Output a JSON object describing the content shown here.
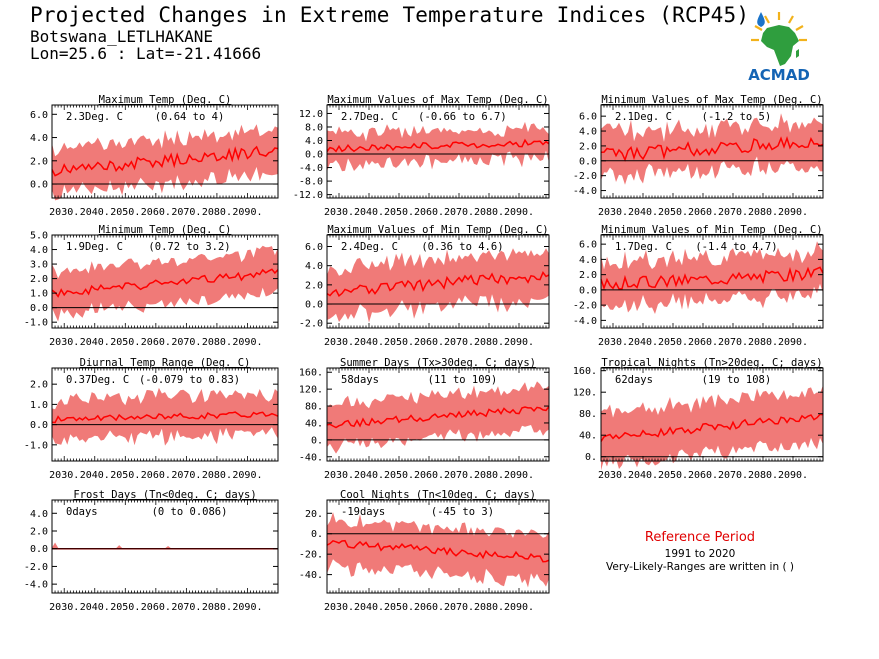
{
  "header": {
    "title": "Projected Changes in Extreme Temperature Indices (RCP45)",
    "station": "Botswana_LETLHAKANE",
    "coords": "Lon=25.6 : Lat=-21.41666"
  },
  "logo": {
    "text": "ACMAD",
    "icon": "africa-map-logo"
  },
  "reference": {
    "title": "Reference Period",
    "years": "1991 to 2020",
    "note": "Very-Likely-Ranges are written in ( )"
  },
  "colors": {
    "band": "#f07a78",
    "line": "#ff0000",
    "zero": "#000000",
    "ref_title": "#e00000"
  },
  "chart_data": [
    {
      "type": "line",
      "title": "Maximum Temp (Deg. C)",
      "change": "2.3Deg. C",
      "range": "(0.64 to 4)",
      "x_ticks": [
        "2030.",
        "2040.",
        "2050.",
        "2060.",
        "2070.",
        "2080.",
        "2090."
      ],
      "xlim": [
        2026,
        2100
      ],
      "ylim": [
        -1.2,
        6.8
      ],
      "yticks": [
        0,
        2,
        4,
        6
      ],
      "ytick_labels": [
        "0.0",
        "2.0",
        "4.0",
        "6.0"
      ],
      "series": [
        {
          "x0": 2026,
          "x1": 2100,
          "start": 1.1,
          "end": 2.9,
          "wiggle": 0.5,
          "band": 1.45,
          "bandvar": 0.9,
          "seed": 11
        }
      ]
    },
    {
      "type": "line",
      "title": "Maximum Values of Max Temp (Deg. C)",
      "change": "2.7Deg. C",
      "range": "(-0.66 to 6.7)",
      "x_ticks": [
        "2030.",
        "2040.",
        "2050.",
        "2060.",
        "2070.",
        "2080.",
        "2090."
      ],
      "xlim": [
        2026,
        2100
      ],
      "ylim": [
        -13,
        14.5
      ],
      "yticks": [
        -12,
        -8,
        -4,
        0,
        4,
        8,
        12
      ],
      "ytick_labels": [
        "-12.0",
        "-8.0",
        "-4.0",
        "0.0",
        "4.0",
        "8.0",
        "12.0"
      ],
      "series": [
        {
          "x0": 2026,
          "x1": 2100,
          "start": 1.5,
          "end": 3.4,
          "wiggle": 1.0,
          "band": 2.5,
          "bandvar": 4.0,
          "seed": 23
        }
      ]
    },
    {
      "type": "line",
      "title": "Minimum Values of Max Temp (Deg. C)",
      "change": "2.1Deg. C",
      "range": "(-1.2 to 5)",
      "x_ticks": [
        "2030.",
        "2040.",
        "2050.",
        "2060.",
        "2070.",
        "2080.",
        "2090."
      ],
      "xlim": [
        2026,
        2100
      ],
      "ylim": [
        -5,
        7.5
      ],
      "yticks": [
        -4,
        -2,
        0,
        2,
        4,
        6
      ],
      "ytick_labels": [
        "-4.0",
        "-2.0",
        "0.0",
        "2.0",
        "4.0",
        "6.0"
      ],
      "series": [
        {
          "x0": 2026,
          "x1": 2100,
          "start": 0.8,
          "end": 2.6,
          "wiggle": 0.9,
          "band": 2.0,
          "bandvar": 1.8,
          "seed": 37
        }
      ]
    },
    {
      "type": "line",
      "title": "Minimum Temp (Deg. C)",
      "change": "1.9Deg. C",
      "range": "(0.72 to 3.2)",
      "x_ticks": [
        "2030.",
        "2040.",
        "2050.",
        "2060.",
        "2070.",
        "2080.",
        "2090."
      ],
      "xlim": [
        2026,
        2100
      ],
      "ylim": [
        -1.4,
        5.0
      ],
      "yticks": [
        -1,
        0,
        1,
        2,
        3,
        4,
        5
      ],
      "ytick_labels": [
        "-1.0",
        "0.0",
        "1.0",
        "2.0",
        "3.0",
        "4.0",
        "5.0"
      ],
      "series": [
        {
          "x0": 2026,
          "x1": 2100,
          "start": 1.0,
          "end": 2.4,
          "wiggle": 0.3,
          "band": 1.1,
          "bandvar": 0.7,
          "seed": 41
        }
      ]
    },
    {
      "type": "line",
      "title": "Maximum Values of Min Temp (Deg. C)",
      "change": "2.4Deg. C",
      "range": "(0.36 to 4.6)",
      "x_ticks": [
        "2030.",
        "2040.",
        "2050.",
        "2060.",
        "2070.",
        "2080.",
        "2090."
      ],
      "xlim": [
        2026,
        2100
      ],
      "ylim": [
        -2.5,
        7.2
      ],
      "yticks": [
        -2,
        0,
        2,
        4,
        6
      ],
      "ytick_labels": [
        "-2.0",
        "0.0",
        "2.0",
        "4.0",
        "6.0"
      ],
      "series": [
        {
          "x0": 2026,
          "x1": 2100,
          "start": 1.3,
          "end": 3.0,
          "wiggle": 0.6,
          "band": 1.9,
          "bandvar": 1.2,
          "seed": 53
        }
      ]
    },
    {
      "type": "line",
      "title": "Minimum Values of Min Temp (Deg. C)",
      "change": "1.7Deg. C",
      "range": "(-1.4 to 4.7)",
      "x_ticks": [
        "2030.",
        "2040.",
        "2050.",
        "2060.",
        "2070.",
        "2080.",
        "2090."
      ],
      "xlim": [
        2026,
        2100
      ],
      "ylim": [
        -5,
        7.2
      ],
      "yticks": [
        -4,
        -2,
        0,
        2,
        4,
        6
      ],
      "ytick_labels": [
        "-4.0",
        "-2.0",
        "0.0",
        "2.0",
        "4.0",
        "6.0"
      ],
      "series": [
        {
          "x0": 2026,
          "x1": 2100,
          "start": 0.8,
          "end": 2.2,
          "wiggle": 0.8,
          "band": 2.1,
          "bandvar": 1.5,
          "seed": 67
        }
      ]
    },
    {
      "type": "line",
      "title": "Diurnal Temp Range (Deg. C)",
      "change": "0.37Deg. C",
      "range": "(-0.079 to 0.83)",
      "x_ticks": [
        "2030.",
        "2040.",
        "2050.",
        "2060.",
        "2070.",
        "2080.",
        "2090."
      ],
      "xlim": [
        2026,
        2100
      ],
      "ylim": [
        -1.8,
        2.8
      ],
      "yticks": [
        -1,
        0,
        1,
        2
      ],
      "ytick_labels": [
        "-1.0",
        "0.0",
        "1.0",
        "2.0"
      ],
      "series": [
        {
          "x0": 2026,
          "x1": 2100,
          "start": 0.25,
          "end": 0.55,
          "wiggle": 0.15,
          "band": 0.65,
          "bandvar": 0.7,
          "seed": 71
        }
      ]
    },
    {
      "type": "line",
      "title": "Summer Days (Tx>30deg. C; days)",
      "change": "58days",
      "range": "(11 to 109)",
      "x_ticks": [
        "2030.",
        "2040.",
        "2050.",
        "2060.",
        "2070.",
        "2080.",
        "2090."
      ],
      "xlim": [
        2026,
        2100
      ],
      "ylim": [
        -50,
        170
      ],
      "yticks": [
        -40,
        0,
        40,
        80,
        120,
        160
      ],
      "ytick_labels": [
        "-40.",
        "0.",
        "40.",
        "80.",
        "120.",
        "160."
      ],
      "series": [
        {
          "x0": 2026,
          "x1": 2100,
          "start": 35,
          "end": 75,
          "wiggle": 8,
          "band": 38,
          "bandvar": 25,
          "seed": 83
        }
      ]
    },
    {
      "type": "line",
      "title": "Tropical Nights (Tn>20deg. C; days)",
      "change": "62days",
      "range": "(19 to 108)",
      "x_ticks": [
        "2030.",
        "2040.",
        "2050.",
        "2060.",
        "2070.",
        "2080.",
        "2090."
      ],
      "xlim": [
        2026,
        2100
      ],
      "ylim": [
        -8,
        165
      ],
      "yticks": [
        0,
        40,
        80,
        120,
        160
      ],
      "ytick_labels": [
        "0.",
        "40.",
        "80.",
        "120.",
        "160."
      ],
      "series": [
        {
          "x0": 2026,
          "x1": 2100,
          "start": 35,
          "end": 75,
          "wiggle": 8,
          "band": 38,
          "bandvar": 22,
          "seed": 97
        }
      ]
    },
    {
      "type": "line",
      "title": "Frost Days (Tn<0deg. C; days)",
      "change": "0days",
      "range": "(0 to 0.086)",
      "x_ticks": [
        "2030.",
        "2040.",
        "2050.",
        "2060.",
        "2070.",
        "2080.",
        "2090."
      ],
      "xlim": [
        2026,
        2100
      ],
      "ylim": [
        -5,
        5.5
      ],
      "yticks": [
        -4,
        -2,
        0,
        2,
        4
      ],
      "ytick_labels": [
        "-4.0",
        "-2.0",
        "0.0",
        "2.0",
        "4.0"
      ],
      "series": [
        {
          "x0": 2026,
          "x1": 2100,
          "start": 0,
          "end": 0,
          "wiggle": 0,
          "band": 0,
          "bandvar": 0,
          "seed": 5,
          "spikes": [
            [
              2027,
              0.7
            ],
            [
              2048,
              0.4
            ],
            [
              2064,
              0.3
            ]
          ]
        }
      ]
    },
    {
      "type": "line",
      "title": "Cool Nights (Tn<10deg. C; days)",
      "change": "-19days",
      "range": "(-45 to 3)",
      "x_ticks": [
        "2030.",
        "2040.",
        "2050.",
        "2060.",
        "2070.",
        "2080.",
        "2090."
      ],
      "xlim": [
        2026,
        2100
      ],
      "ylim": [
        -58,
        33
      ],
      "yticks": [
        -40,
        -20,
        0,
        20
      ],
      "ytick_labels": [
        "-40.",
        "-20.",
        "0.",
        "20."
      ],
      "series": [
        {
          "x0": 2026,
          "x1": 2100,
          "start": -9,
          "end": -24,
          "wiggle": 4,
          "band": 17,
          "bandvar": 12,
          "seed": 101
        }
      ]
    }
  ]
}
